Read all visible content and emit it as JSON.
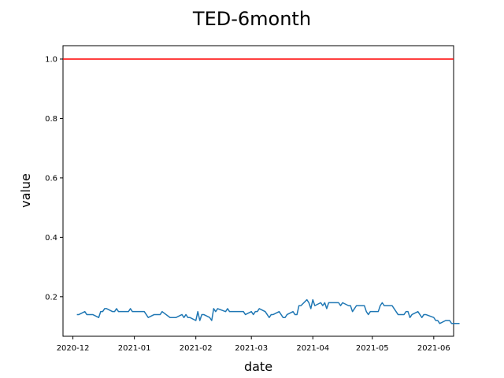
{
  "chart_data": {
    "type": "line",
    "title": "TED-6month",
    "xlabel": "date",
    "ylabel": "value",
    "xlim": [
      "2020-11-26",
      "2021-06-11"
    ],
    "ylim": [
      0.067,
      1.045
    ],
    "x_ticks": [
      "2020-12",
      "2021-01",
      "2021-02",
      "2021-03",
      "2021-04",
      "2021-05",
      "2021-06"
    ],
    "y_ticks": [
      "0.2",
      "0.4",
      "0.6",
      "0.8",
      "1.0"
    ],
    "reference_line": {
      "y": 1.0,
      "color": "#ff0000"
    },
    "series": [
      {
        "color": "#1f77b4",
        "points": [
          [
            "2020-12-03",
            0.14
          ],
          [
            "2020-12-04",
            0.14
          ],
          [
            "2020-12-07",
            0.15
          ],
          [
            "2020-12-08",
            0.14
          ],
          [
            "2020-12-09",
            0.14
          ],
          [
            "2020-12-10",
            0.14
          ],
          [
            "2020-12-11",
            0.14
          ],
          [
            "2020-12-14",
            0.13
          ],
          [
            "2020-12-15",
            0.15
          ],
          [
            "2020-12-16",
            0.15
          ],
          [
            "2020-12-17",
            0.16
          ],
          [
            "2020-12-18",
            0.16
          ],
          [
            "2020-12-21",
            0.15
          ],
          [
            "2020-12-22",
            0.15
          ],
          [
            "2020-12-23",
            0.16
          ],
          [
            "2020-12-24",
            0.15
          ],
          [
            "2020-12-28",
            0.15
          ],
          [
            "2020-12-29",
            0.15
          ],
          [
            "2020-12-30",
            0.16
          ],
          [
            "2020-12-31",
            0.15
          ],
          [
            "2021-01-04",
            0.15
          ],
          [
            "2021-01-05",
            0.15
          ],
          [
            "2021-01-06",
            0.15
          ],
          [
            "2021-01-07",
            0.14
          ],
          [
            "2021-01-08",
            0.13
          ],
          [
            "2021-01-11",
            0.14
          ],
          [
            "2021-01-12",
            0.14
          ],
          [
            "2021-01-13",
            0.14
          ],
          [
            "2021-01-14",
            0.14
          ],
          [
            "2021-01-15",
            0.15
          ],
          [
            "2021-01-19",
            0.13
          ],
          [
            "2021-01-20",
            0.13
          ],
          [
            "2021-01-21",
            0.13
          ],
          [
            "2021-01-22",
            0.13
          ],
          [
            "2021-01-25",
            0.14
          ],
          [
            "2021-01-26",
            0.13
          ],
          [
            "2021-01-27",
            0.14
          ],
          [
            "2021-01-28",
            0.13
          ],
          [
            "2021-01-29",
            0.13
          ],
          [
            "2021-02-01",
            0.12
          ],
          [
            "2021-02-02",
            0.15
          ],
          [
            "2021-02-03",
            0.12
          ],
          [
            "2021-02-04",
            0.14
          ],
          [
            "2021-02-05",
            0.14
          ],
          [
            "2021-02-08",
            0.13
          ],
          [
            "2021-02-09",
            0.12
          ],
          [
            "2021-02-10",
            0.16
          ],
          [
            "2021-02-11",
            0.15
          ],
          [
            "2021-02-12",
            0.16
          ],
          [
            "2021-02-16",
            0.15
          ],
          [
            "2021-02-17",
            0.16
          ],
          [
            "2021-02-18",
            0.15
          ],
          [
            "2021-02-19",
            0.15
          ],
          [
            "2021-02-22",
            0.15
          ],
          [
            "2021-02-23",
            0.15
          ],
          [
            "2021-02-24",
            0.15
          ],
          [
            "2021-02-25",
            0.15
          ],
          [
            "2021-02-26",
            0.14
          ],
          [
            "2021-03-01",
            0.15
          ],
          [
            "2021-03-02",
            0.14
          ],
          [
            "2021-03-03",
            0.15
          ],
          [
            "2021-03-04",
            0.15
          ],
          [
            "2021-03-05",
            0.16
          ],
          [
            "2021-03-08",
            0.15
          ],
          [
            "2021-03-09",
            0.14
          ],
          [
            "2021-03-10",
            0.13
          ],
          [
            "2021-03-11",
            0.14
          ],
          [
            "2021-03-12",
            0.14
          ],
          [
            "2021-03-15",
            0.15
          ],
          [
            "2021-03-16",
            0.14
          ],
          [
            "2021-03-17",
            0.13
          ],
          [
            "2021-03-18",
            0.13
          ],
          [
            "2021-03-19",
            0.14
          ],
          [
            "2021-03-22",
            0.15
          ],
          [
            "2021-03-23",
            0.14
          ],
          [
            "2021-03-24",
            0.14
          ],
          [
            "2021-03-25",
            0.17
          ],
          [
            "2021-03-26",
            0.17
          ],
          [
            "2021-03-29",
            0.19
          ],
          [
            "2021-03-30",
            0.18
          ],
          [
            "2021-03-31",
            0.16
          ],
          [
            "2021-04-01",
            0.19
          ],
          [
            "2021-04-02",
            0.17
          ],
          [
            "2021-04-05",
            0.18
          ],
          [
            "2021-04-06",
            0.17
          ],
          [
            "2021-04-07",
            0.18
          ],
          [
            "2021-04-08",
            0.16
          ],
          [
            "2021-04-09",
            0.18
          ],
          [
            "2021-04-12",
            0.18
          ],
          [
            "2021-04-13",
            0.18
          ],
          [
            "2021-04-14",
            0.18
          ],
          [
            "2021-04-15",
            0.17
          ],
          [
            "2021-04-16",
            0.18
          ],
          [
            "2021-04-19",
            0.17
          ],
          [
            "2021-04-20",
            0.17
          ],
          [
            "2021-04-21",
            0.15
          ],
          [
            "2021-04-22",
            0.16
          ],
          [
            "2021-04-23",
            0.17
          ],
          [
            "2021-04-26",
            0.17
          ],
          [
            "2021-04-27",
            0.17
          ],
          [
            "2021-04-28",
            0.15
          ],
          [
            "2021-04-29",
            0.14
          ],
          [
            "2021-04-30",
            0.15
          ],
          [
            "2021-05-03",
            0.15
          ],
          [
            "2021-05-04",
            0.15
          ],
          [
            "2021-05-05",
            0.17
          ],
          [
            "2021-05-06",
            0.18
          ],
          [
            "2021-05-07",
            0.17
          ],
          [
            "2021-05-10",
            0.17
          ],
          [
            "2021-05-11",
            0.17
          ],
          [
            "2021-05-12",
            0.16
          ],
          [
            "2021-05-13",
            0.15
          ],
          [
            "2021-05-14",
            0.14
          ],
          [
            "2021-05-17",
            0.14
          ],
          [
            "2021-05-18",
            0.15
          ],
          [
            "2021-05-19",
            0.15
          ],
          [
            "2021-05-20",
            0.13
          ],
          [
            "2021-05-21",
            0.14
          ],
          [
            "2021-05-24",
            0.15
          ],
          [
            "2021-05-25",
            0.14
          ],
          [
            "2021-05-26",
            0.13
          ],
          [
            "2021-05-27",
            0.14
          ],
          [
            "2021-05-28",
            0.14
          ],
          [
            "2021-06-01",
            0.13
          ],
          [
            "2021-06-02",
            0.12
          ],
          [
            "2021-06-03",
            0.12
          ],
          [
            "2021-06-04",
            0.11
          ],
          [
            "2021-06-07",
            0.12
          ],
          [
            "2021-06-08",
            0.12
          ],
          [
            "2021-06-09",
            0.12
          ],
          [
            "2021-06-10",
            0.11
          ],
          [
            "2021-06-11",
            0.11
          ],
          [
            "2021-06-14",
            0.11
          ]
        ]
      }
    ]
  }
}
